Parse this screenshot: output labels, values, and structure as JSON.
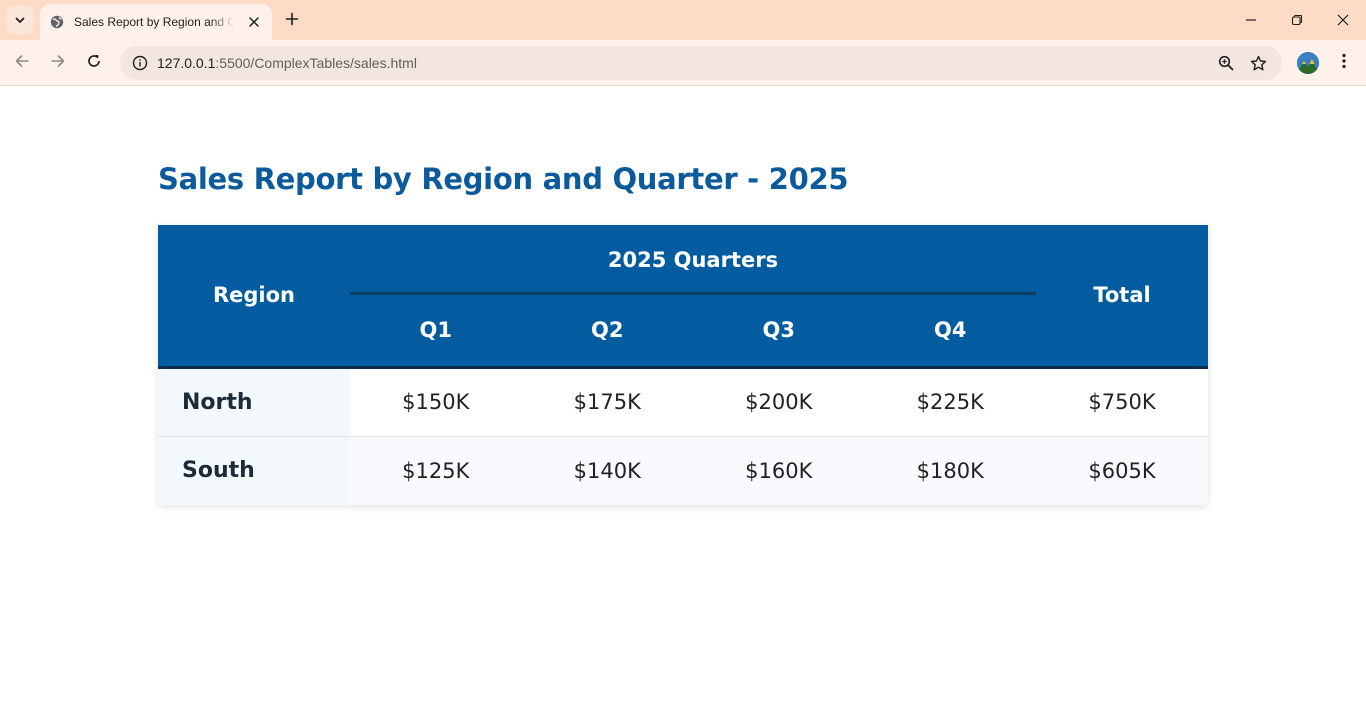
{
  "browser": {
    "tab_title": "Sales Report by Region and Quarter - 2025",
    "url_host": "127.0.0.1",
    "url_path": ":5500/ComplexTables/sales.html",
    "icons": {
      "tab_search": "chevron-down-icon",
      "favicon": "globe-icon",
      "tab_close": "close-icon",
      "new_tab": "plus-icon",
      "minimize": "minimize-icon",
      "restore": "restore-icon",
      "close_window": "close-icon",
      "back": "back-arrow-icon",
      "forward": "forward-arrow-icon",
      "reload": "reload-icon",
      "site_info": "info-icon",
      "zoom": "zoom-icon",
      "bookmark": "star-icon",
      "menu": "kebab-menu-icon"
    },
    "colors": {
      "tabbar": "#fddcc6",
      "toolbar": "#fdf1ea",
      "omnibox": "#f3e6e1"
    }
  },
  "page": {
    "title": "Sales Report by Region and Quarter - 2025",
    "colors": {
      "accent": "#0a5a9c",
      "header_bg": "#035c9f",
      "header_rule": "#0b2e4f",
      "region_bg": "#f3f8fc"
    }
  },
  "table": {
    "region_header": "Region",
    "group_header": "2025 Quarters",
    "quarters": [
      "Q1",
      "Q2",
      "Q3",
      "Q4"
    ],
    "total_header": "Total",
    "rows": [
      {
        "region": "North",
        "values": [
          "$150K",
          "$175K",
          "$200K",
          "$225K"
        ],
        "total": "$750K"
      },
      {
        "region": "South",
        "values": [
          "$125K",
          "$140K",
          "$160K",
          "$180K"
        ],
        "total": "$605K"
      }
    ]
  }
}
